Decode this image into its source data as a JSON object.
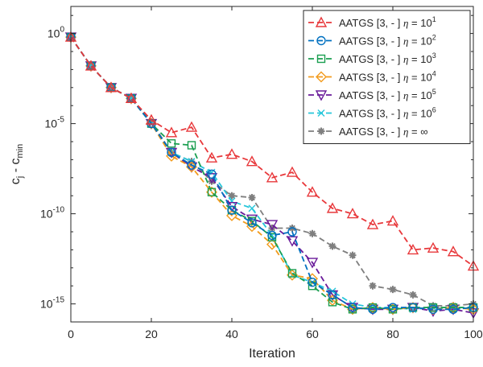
{
  "chart_data": {
    "type": "line",
    "xlabel": "Iteration",
    "ylabel_main": "c",
    "ylabel_sub1": "j",
    "ylabel_mid": " - c",
    "ylabel_sub2": "min",
    "ylabel": "c_j - c_min",
    "y_scale": "log",
    "xlim": [
      0,
      100
    ],
    "ylim_exponent": [
      -16,
      1.5
    ],
    "x_ticks": [
      "0",
      "20",
      "40",
      "60",
      "80",
      "100"
    ],
    "x_tick_values": [
      0,
      20,
      40,
      60,
      80,
      100
    ],
    "y_ticks": [
      {
        "base": "10",
        "exp": "0",
        "value_exp": 0
      },
      {
        "base": "10",
        "exp": "-5",
        "value_exp": -5
      },
      {
        "base": "10",
        "exp": "-10",
        "value_exp": -10
      },
      {
        "base": "10",
        "exp": "-15",
        "value_exp": -15
      }
    ],
    "grid": false,
    "legend_position": "top-right",
    "x": [
      0,
      5,
      10,
      15,
      20,
      25,
      30,
      35,
      40,
      45,
      50,
      55,
      60,
      65,
      70,
      75,
      80,
      85,
      90,
      95,
      100
    ],
    "series": [
      {
        "name": "AATGS [3, - ] η = 10^1",
        "legend_prefix": "AATGS [3, - ] ",
        "legend_eta": "η",
        "legend_eq": " = 10",
        "legend_exp": "1",
        "color": "#e8383b",
        "marker": "triangle-up",
        "x": [
          0,
          5,
          10,
          15,
          20,
          25,
          30,
          35,
          40,
          45,
          50,
          55,
          60,
          65,
          70,
          75,
          80,
          85,
          90,
          95,
          100
        ],
        "log10_y": [
          -0.2,
          -1.8,
          -3.0,
          -3.6,
          -4.8,
          -5.5,
          -5.2,
          -6.9,
          -6.7,
          -7.1,
          -8.0,
          -7.7,
          -8.8,
          -9.7,
          -10.0,
          -10.6,
          -10.4,
          -12.0,
          -11.9,
          -12.1,
          -12.9
        ]
      },
      {
        "name": "AATGS [3, - ] η = 10^2",
        "legend_prefix": "AATGS [3, - ] ",
        "legend_eta": "η",
        "legend_eq": " = 10",
        "legend_exp": "2",
        "color": "#0070c0",
        "marker": "circle",
        "x": [
          0,
          5,
          10,
          15,
          20,
          25,
          30,
          35,
          40,
          45,
          50,
          55,
          60,
          65,
          70,
          75,
          80,
          85,
          90,
          95,
          100
        ],
        "log10_y": [
          -0.2,
          -1.8,
          -3.0,
          -3.6,
          -5.0,
          -6.6,
          -7.3,
          -7.8,
          -9.8,
          -10.5,
          -11.2,
          -11.0,
          -13.8,
          -14.5,
          -15.2,
          -15.3,
          -15.2,
          -15.2,
          -15.3,
          -15.3,
          -15.2
        ]
      },
      {
        "name": "AATGS [3, - ] η = 10^3",
        "legend_prefix": "AATGS [3, - ] ",
        "legend_eta": "η",
        "legend_eq": " = 10",
        "legend_exp": "3",
        "color": "#1a9e50",
        "marker": "square",
        "x": [
          0,
          5,
          10,
          15,
          20,
          25,
          30,
          35,
          40,
          45,
          50,
          55,
          60,
          65,
          70,
          75,
          80,
          85,
          90,
          95,
          100
        ],
        "log10_y": [
          -0.2,
          -1.8,
          -3.0,
          -3.6,
          -5.0,
          -6.1,
          -6.2,
          -8.8,
          -9.8,
          -10.4,
          -11.3,
          -13.3,
          -14.0,
          -14.9,
          -15.3,
          -15.2,
          -15.3,
          -15.2,
          -15.2,
          -15.2,
          -15.2
        ]
      },
      {
        "name": "AATGS [3, - ] η = 10^4",
        "legend_prefix": "AATGS [3, - ] ",
        "legend_eta": "η",
        "legend_eq": " = 10",
        "legend_exp": "4",
        "color": "#f29b1d",
        "marker": "diamond",
        "x": [
          0,
          5,
          10,
          15,
          20,
          25,
          30,
          35,
          40,
          45,
          50,
          55,
          60,
          65,
          70,
          75,
          80,
          85,
          90,
          95,
          100
        ],
        "log10_y": [
          -0.2,
          -1.8,
          -3.0,
          -3.6,
          -5.0,
          -6.8,
          -7.4,
          -8.8,
          -10.1,
          -10.7,
          -11.7,
          -13.4,
          -13.6,
          -14.8,
          -15.3,
          -15.2,
          -15.3,
          -15.2,
          -15.3,
          -15.2,
          -15.3
        ]
      },
      {
        "name": "AATGS [3, - ] η = 10^5",
        "legend_prefix": "AATGS [3, - ] ",
        "legend_eta": "η",
        "legend_eq": " = 10",
        "legend_exp": "5",
        "color": "#6a1b9a",
        "marker": "triangle-down",
        "x": [
          0,
          5,
          10,
          15,
          20,
          25,
          30,
          35,
          40,
          45,
          50,
          55,
          60,
          65,
          70,
          75,
          80,
          85,
          90,
          95,
          100
        ],
        "log10_y": [
          -0.2,
          -1.8,
          -3.0,
          -3.6,
          -5.0,
          -6.6,
          -7.4,
          -8.0,
          -9.6,
          -10.3,
          -10.6,
          -11.5,
          -12.7,
          -14.5,
          -15.2,
          -15.3,
          -15.3,
          -15.2,
          -15.4,
          -15.3,
          -15.5
        ]
      },
      {
        "name": "AATGS [3, - ] η = 10^6",
        "legend_prefix": "AATGS [3, - ] ",
        "legend_eta": "η",
        "legend_eq": " = 10",
        "legend_exp": "6",
        "color": "#26c6da",
        "marker": "x",
        "x": [
          0,
          5,
          10,
          15,
          20,
          25,
          30,
          35,
          40,
          45,
          50,
          55,
          60,
          65,
          70,
          75,
          80,
          85,
          90,
          95,
          100
        ],
        "log10_y": [
          -0.2,
          -1.8,
          -3.0,
          -3.6,
          -5.0,
          -6.6,
          -7.1,
          -7.7,
          -9.3,
          -9.7,
          -11.2,
          -13.4,
          -13.8,
          -14.3,
          -15.0,
          -15.2,
          -15.2,
          -15.3,
          -15.2,
          -15.3,
          -15.2
        ]
      },
      {
        "name": "AATGS [3, - ] η = ∞",
        "legend_prefix": "AATGS [3, - ] ",
        "legend_eta": "η",
        "legend_eq": " = ∞",
        "legend_exp": "",
        "color": "#7f7f7f",
        "marker": "star",
        "x": [
          0,
          5,
          10,
          15,
          20,
          25,
          30,
          35,
          40,
          45,
          50,
          55,
          60,
          65,
          70,
          75,
          80,
          85,
          90,
          95,
          100
        ],
        "log10_y": [
          -0.2,
          -1.8,
          -3.0,
          -3.6,
          -4.9,
          -6.6,
          -7.1,
          -8.2,
          -9.0,
          -9.1,
          -10.8,
          -10.8,
          -11.1,
          -11.8,
          -12.3,
          -14.0,
          -14.2,
          -14.5,
          -15.1,
          -15.1,
          -15.0
        ]
      }
    ]
  }
}
